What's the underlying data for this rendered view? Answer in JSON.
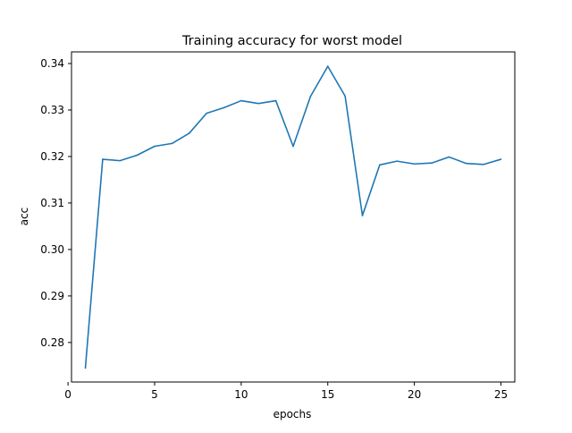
{
  "chart_data": {
    "type": "line",
    "title": "Training accuracy for worst model",
    "xlabel": "epochs",
    "ylabel": "acc",
    "xlim": [
      0.2,
      25.8
    ],
    "ylim": [
      0.2715,
      0.3425
    ],
    "x_ticks": [
      0,
      5,
      10,
      15,
      20,
      25
    ],
    "y_ticks": [
      0.28,
      0.29,
      0.3,
      0.31,
      0.32,
      0.33,
      0.34
    ],
    "y_tick_labels": [
      "0.28",
      "0.29",
      "0.30",
      "0.31",
      "0.32",
      "0.33",
      "0.34"
    ],
    "grid": false,
    "line_color": "#1f77b4",
    "x": [
      1,
      2,
      3,
      4,
      5,
      6,
      7,
      8,
      9,
      10,
      11,
      12,
      13,
      14,
      15,
      16,
      17,
      18,
      19,
      20,
      21,
      22,
      23,
      24,
      25
    ],
    "y": [
      0.2745,
      0.3194,
      0.3191,
      0.3203,
      0.3222,
      0.3228,
      0.325,
      0.3293,
      0.3305,
      0.332,
      0.3314,
      0.332,
      0.3222,
      0.3329,
      0.3394,
      0.333,
      0.3073,
      0.3182,
      0.319,
      0.3184,
      0.3186,
      0.3199,
      0.3185,
      0.3183,
      0.3194
    ]
  }
}
